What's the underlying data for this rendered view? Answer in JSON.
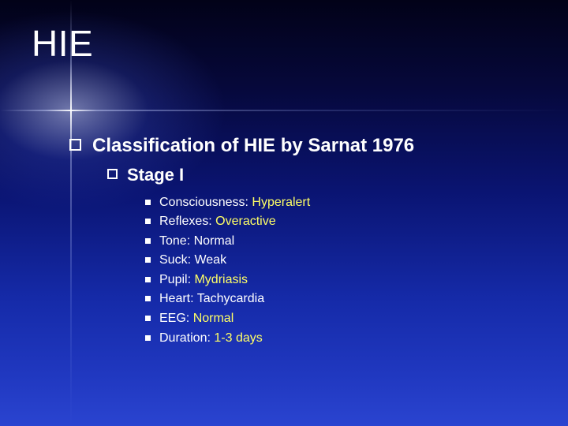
{
  "title": "HIE",
  "level1": {
    "text": "Classification of HIE by Sarnat 1976"
  },
  "level2": {
    "text": "Stage I"
  },
  "items": [
    {
      "label": "Consciousness: ",
      "value": "Hyperalert",
      "color": "y"
    },
    {
      "label": "Reflexes: ",
      "value": "Overactive",
      "color": "y"
    },
    {
      "label": "Tone: ",
      "value": "Normal",
      "color": "w"
    },
    {
      "label": "Suck: ",
      "value": "Weak",
      "color": "w"
    },
    {
      "label": "Pupil: ",
      "value": "Mydriasis",
      "color": "y"
    },
    {
      "label": "Heart: ",
      "value": "Tachycardia",
      "color": "w"
    },
    {
      "label": "EEG: ",
      "value": "Normal",
      "color": "y"
    },
    {
      "label": "Duration: ",
      "value": "1-3 days",
      "color": "y"
    }
  ],
  "colors": {
    "highlight": "#ffff66",
    "text": "#ffffff"
  }
}
